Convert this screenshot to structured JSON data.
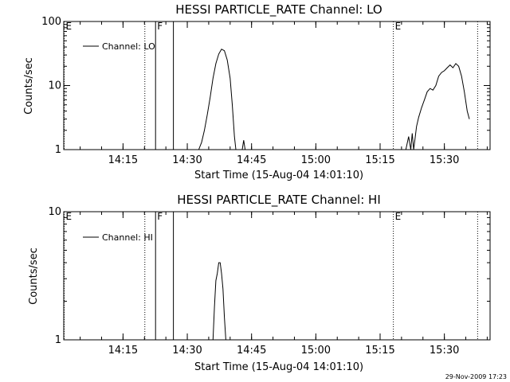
{
  "footer": {
    "timestamp": "29-Nov-2009 17:23"
  },
  "chart_data": [
    {
      "type": "line",
      "title": "HESSI PARTICLE_RATE Channel: LO",
      "xlabel": "Start Time (15-Aug-04 14:01:10)",
      "ylabel": "Counts/sec",
      "yscale": "log",
      "xlim": [
        "14:01:10",
        "15:40:40"
      ],
      "ylim": [
        1,
        100
      ],
      "x_ticks": [
        "14:15",
        "14:30",
        "14:45",
        "15:00",
        "15:15",
        "15:30"
      ],
      "y_ticks": [
        "1",
        "10",
        "100"
      ],
      "grid": false,
      "legend": {
        "position": "upper-left",
        "entries": [
          "Channel: LO"
        ]
      },
      "markers": [
        {
          "time": "14:01:10",
          "label": "E",
          "style": "dotted"
        },
        {
          "time": "14:20:00",
          "label": "",
          "style": "dotted"
        },
        {
          "time": "14:22:30",
          "label": "F",
          "style": "solid"
        },
        {
          "time": "14:26:40",
          "label": "",
          "style": "solid"
        },
        {
          "time": "15:18:00",
          "label": "E",
          "style": "dotted"
        },
        {
          "time": "15:37:40",
          "label": "",
          "style": "dotted"
        }
      ],
      "series": [
        {
          "name": "Channel: LO",
          "segments": [
            [
              [
                "14:32:40",
                1
              ],
              [
                "14:33:20",
                1.3
              ],
              [
                "14:34:00",
                2
              ],
              [
                "14:34:40",
                3.5
              ],
              [
                "14:35:20",
                6.5
              ],
              [
                "14:36:00",
                13
              ],
              [
                "14:36:40",
                22
              ],
              [
                "14:37:20",
                31
              ],
              [
                "14:38:00",
                37
              ],
              [
                "14:38:40",
                35
              ],
              [
                "14:39:20",
                25
              ],
              [
                "14:40:00",
                13
              ],
              [
                "14:40:30",
                5
              ],
              [
                "14:41:00",
                1.6
              ],
              [
                "14:41:20",
                1
              ]
            ],
            [
              [
                "14:42:50",
                1
              ],
              [
                "14:43:10",
                1.4
              ],
              [
                "14:43:30",
                1
              ]
            ],
            [
              [
                "15:21:00",
                1
              ],
              [
                "15:21:40",
                1.6
              ],
              [
                "15:22:10",
                1
              ],
              [
                "15:22:30",
                1.8
              ],
              [
                "15:22:50",
                1
              ],
              [
                "15:23:10",
                1.5
              ],
              [
                "15:23:30",
                2.3
              ],
              [
                "15:24:00",
                3.2
              ],
              [
                "15:24:40",
                4.5
              ],
              [
                "15:25:20",
                6
              ],
              [
                "15:26:00",
                8
              ],
              [
                "15:26:40",
                9
              ],
              [
                "15:27:20",
                8.5
              ],
              [
                "15:28:00",
                10
              ],
              [
                "15:28:40",
                14
              ],
              [
                "15:29:20",
                16
              ],
              [
                "15:30:00",
                17
              ],
              [
                "15:30:40",
                19
              ],
              [
                "15:31:20",
                21
              ],
              [
                "15:32:00",
                19
              ],
              [
                "15:32:40",
                22
              ],
              [
                "15:33:20",
                20
              ],
              [
                "15:34:00",
                14
              ],
              [
                "15:34:40",
                8
              ],
              [
                "15:35:20",
                4
              ],
              [
                "15:35:50",
                3
              ]
            ]
          ]
        }
      ]
    },
    {
      "type": "line",
      "title": "HESSI PARTICLE_RATE Channel: HI",
      "xlabel": "Start Time (15-Aug-04 14:01:10)",
      "ylabel": "Counts/sec",
      "yscale": "log",
      "xlim": [
        "14:01:10",
        "15:40:40"
      ],
      "ylim": [
        1,
        10
      ],
      "x_ticks": [
        "14:15",
        "14:30",
        "14:45",
        "15:00",
        "15:15",
        "15:30"
      ],
      "y_ticks": [
        "1",
        "10"
      ],
      "grid": false,
      "legend": {
        "position": "upper-left",
        "entries": [
          "Channel: HI"
        ]
      },
      "markers": [
        {
          "time": "14:01:10",
          "label": "E",
          "style": "dotted"
        },
        {
          "time": "14:20:00",
          "label": "",
          "style": "dotted"
        },
        {
          "time": "14:22:30",
          "label": "F",
          "style": "solid"
        },
        {
          "time": "14:26:40",
          "label": "",
          "style": "solid"
        },
        {
          "time": "15:18:00",
          "label": "E",
          "style": "dotted"
        },
        {
          "time": "15:37:40",
          "label": "",
          "style": "dotted"
        }
      ],
      "series": [
        {
          "name": "Channel: HI",
          "segments": [
            [
              [
                "14:36:00",
                1
              ],
              [
                "14:36:20",
                1.8
              ],
              [
                "14:36:40",
                2.9
              ],
              [
                "14:37:00",
                3.3
              ],
              [
                "14:37:20",
                4
              ],
              [
                "14:37:40",
                4
              ],
              [
                "14:38:00",
                3.3
              ],
              [
                "14:38:20",
                2.5
              ],
              [
                "14:38:40",
                1.5
              ],
              [
                "14:39:00",
                1
              ]
            ]
          ]
        }
      ]
    }
  ]
}
